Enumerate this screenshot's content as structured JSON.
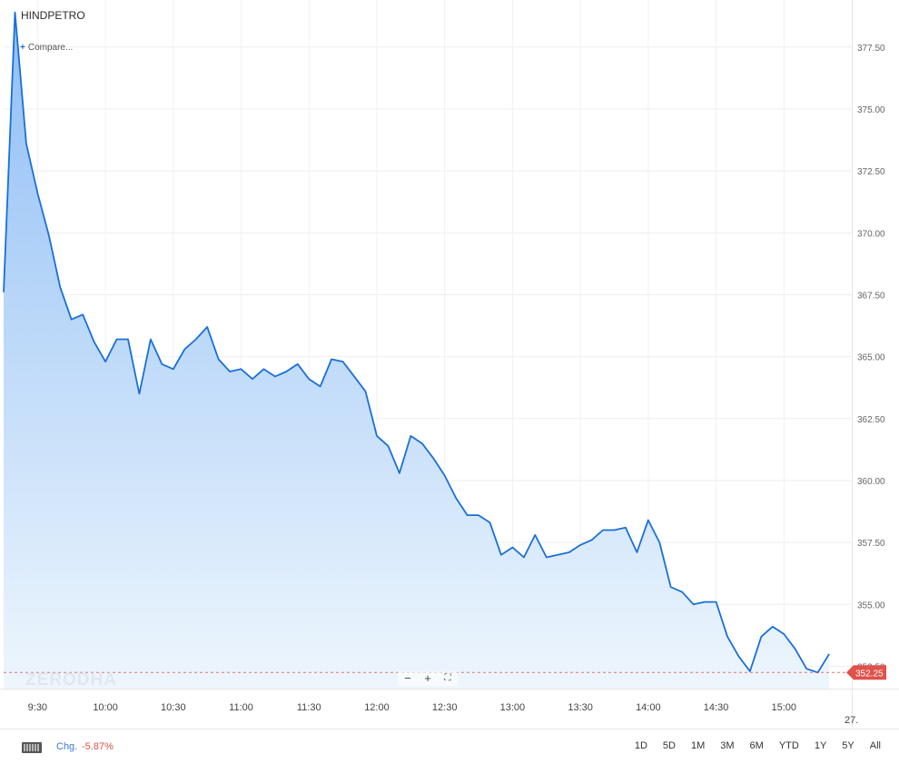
{
  "symbol": "HINDPETRO",
  "compare_label": "Compare...",
  "compare_icon": "plus-icon",
  "watermark": "ZERODHA",
  "zoom_controls": [
    "−",
    "+",
    "⛶"
  ],
  "last_price_label": "352.25",
  "colors": {
    "line": "#1a6fd8",
    "price_tag": "#e0514b",
    "change_negative": "#e0514b",
    "chg_label": "#3a7bd5"
  },
  "footer": {
    "chg_label": "Chg.",
    "chg_value": "-5.87%",
    "ranges": [
      "1D",
      "5D",
      "1M",
      "3M",
      "6M",
      "YTD",
      "1Y",
      "5Y",
      "All"
    ]
  },
  "chart_data": {
    "type": "area",
    "x_tick_labels": [
      "9:30",
      "10:00",
      "10:30",
      "11:00",
      "11:30",
      "12:00",
      "12:30",
      "13:00",
      "13:30",
      "14:00",
      "14:30",
      "15:00",
      "27."
    ],
    "y_tick_labels": [
      "352.50",
      "355.00",
      "357.50",
      "360.00",
      "362.50",
      "365.00",
      "367.50",
      "370.00",
      "372.50",
      "375.00",
      "377.50"
    ],
    "y_ticks": [
      352.5,
      355,
      357.5,
      360,
      362.5,
      365,
      367.5,
      370,
      372.5,
      375,
      377.5
    ],
    "ylim": [
      351.6,
      379.4
    ],
    "x_start": "09:15",
    "x_end": "15:30",
    "grid": true,
    "last_price": 352.25,
    "x": [
      "09:15",
      "09:20",
      "09:25",
      "09:30",
      "09:35",
      "09:40",
      "09:45",
      "09:50",
      "09:55",
      "10:00",
      "10:05",
      "10:10",
      "10:15",
      "10:20",
      "10:25",
      "10:30",
      "10:35",
      "10:40",
      "10:45",
      "10:50",
      "10:55",
      "11:00",
      "11:05",
      "11:10",
      "11:15",
      "11:20",
      "11:25",
      "11:30",
      "11:35",
      "11:40",
      "11:45",
      "11:50",
      "11:55",
      "12:00",
      "12:05",
      "12:10",
      "12:15",
      "12:20",
      "12:25",
      "12:30",
      "12:35",
      "12:40",
      "12:45",
      "12:50",
      "12:55",
      "13:00",
      "13:05",
      "13:10",
      "13:15",
      "13:20",
      "13:25",
      "13:30",
      "13:35",
      "13:40",
      "13:45",
      "13:50",
      "13:55",
      "14:00",
      "14:05",
      "14:10",
      "14:15",
      "14:20",
      "14:25",
      "14:30",
      "14:35",
      "14:40",
      "14:45",
      "14:50",
      "14:55",
      "15:00",
      "15:05",
      "15:10",
      "15:15",
      "15:20",
      "15:25",
      "15:30"
    ],
    "series": [
      {
        "values": [
          367.6,
          378.9,
          373.6,
          371.6,
          369.9,
          367.8,
          366.5,
          366.7,
          365.6,
          364.8,
          365.7,
          365.7,
          363.5,
          365.7,
          364.7,
          364.5,
          365.3,
          365.7,
          366.2,
          364.9,
          364.4,
          364.5,
          364.1,
          364.5,
          364.2,
          364.4,
          364.7,
          364.1,
          363.8,
          364.9,
          364.8,
          364.2,
          363.6,
          361.8,
          361.4,
          360.3,
          361.8,
          361.5,
          360.9,
          360.2,
          359.3,
          358.6,
          358.6,
          358.3,
          357.0,
          357.3,
          356.9,
          357.8,
          356.9,
          357.0,
          357.1,
          357.4,
          357.6,
          358.0,
          358.0,
          358.1,
          357.1,
          358.4,
          357.5,
          355.7,
          355.5,
          355.0,
          355.1,
          355.1,
          353.7,
          352.9,
          352.3,
          353.7,
          354.1,
          353.8,
          353.2,
          352.4,
          352.25,
          353.0,
          352.25,
          352.25
        ]
      }
    ]
  }
}
